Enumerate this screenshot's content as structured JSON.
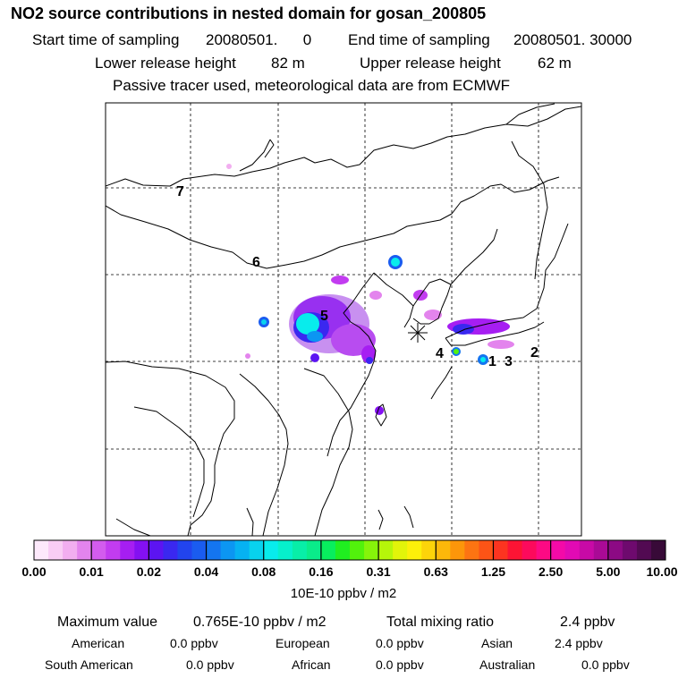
{
  "header": {
    "title": "NO2 source contributions in nested domain for gosan_200805",
    "start_label": "Start time of sampling",
    "start_value": "20080501.      0",
    "end_label": "End time of sampling",
    "end_value": "20080501. 30000",
    "lower_label": "Lower release height",
    "lower_value": "82 m",
    "upper_label": "Upper release height",
    "upper_value": "62 m",
    "tracer_note": "Passive tracer used, meteorological data are from ECMWF"
  },
  "map": {
    "region_labels": [
      "7",
      "6",
      "5",
      "4",
      "1",
      "3",
      "2"
    ],
    "receptor_symbol": "asterisk"
  },
  "colorbar": {
    "tick_labels": [
      "0.00",
      "0.01",
      "0.02",
      "0.04",
      "0.08",
      "0.16",
      "0.31",
      "0.63",
      "1.25",
      "2.50",
      "5.00",
      "10.00"
    ],
    "unit": "10E-10 ppbv / m2",
    "colors": [
      "#fde9fb",
      "#f9cdf5",
      "#f2aef0",
      "#e384ed",
      "#d35cee",
      "#c23cf0",
      "#a61ef2",
      "#8410f2",
      "#5c14f2",
      "#3a28f0",
      "#2244ee",
      "#1a5cf0",
      "#1475f0",
      "#0c96f2",
      "#06b2f2",
      "#08d2ee",
      "#08ecec",
      "#06f0cc",
      "#08eea8",
      "#0aec8a",
      "#08ee5e",
      "#20ee20",
      "#52f20c",
      "#86f40a",
      "#b6f60a",
      "#e2f40a",
      "#fcf00a",
      "#fcd40a",
      "#fcb80a",
      "#fc960a",
      "#fc7412",
      "#fc5416",
      "#fc3420",
      "#fc1434",
      "#fc0a5c",
      "#fc0a84",
      "#f40aa8",
      "#e20ab4",
      "#c80aa6",
      "#aa0a96",
      "#8c0a84",
      "#6e0a6e",
      "#520a52",
      "#380a38"
    ]
  },
  "stats": {
    "max_label": "Maximum value",
    "max_value": "0.765E-10 ppbv / m2",
    "total_label": "Total mixing ratio",
    "total_value": "2.4 ppbv",
    "regions": [
      {
        "name": "American",
        "value": "0.0 ppbv"
      },
      {
        "name": "European",
        "value": "0.0 ppbv"
      },
      {
        "name": "Asian",
        "value": "2.4 ppbv"
      },
      {
        "name": "South American",
        "value": "0.0 ppbv"
      },
      {
        "name": "African",
        "value": "0.0 ppbv"
      },
      {
        "name": "Australian",
        "value": "0.0 ppbv"
      }
    ]
  }
}
